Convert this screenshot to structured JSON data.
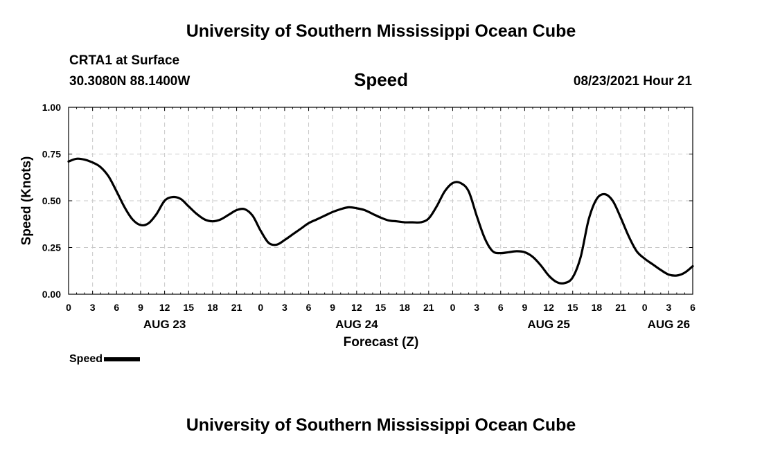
{
  "header": {
    "title": "University of Southern Mississippi Ocean Cube",
    "station": "CRTA1 at Surface",
    "coords": "30.3080N  88.1400W",
    "variable": "Speed",
    "datetime": "08/23/2021 Hour 21"
  },
  "footer": {
    "title": "University of Southern Mississippi Ocean Cube"
  },
  "legend": {
    "label": "Speed"
  },
  "chart_data": {
    "type": "line",
    "title": "Speed",
    "xlabel": "Forecast (Z)",
    "ylabel": "Speed (Knots)",
    "xlim": [
      0,
      78
    ],
    "ylim": [
      0,
      1.0
    ],
    "grid": true,
    "line_color": "#000000",
    "x_ticks": [
      0,
      3,
      6,
      9,
      12,
      15,
      18,
      21,
      24,
      27,
      30,
      33,
      36,
      39,
      42,
      45,
      48,
      51,
      54,
      57,
      60,
      63,
      66,
      69,
      72,
      75,
      78
    ],
    "x_tick_labels": [
      "0",
      "3",
      "6",
      "9",
      "12",
      "15",
      "18",
      "21",
      "0",
      "3",
      "6",
      "9",
      "12",
      "15",
      "18",
      "21",
      "0",
      "3",
      "6",
      "9",
      "12",
      "15",
      "18",
      "21",
      "0",
      "3",
      "6"
    ],
    "date_labels": [
      {
        "hour": 12,
        "label": "AUG 23"
      },
      {
        "hour": 36,
        "label": "AUG 24"
      },
      {
        "hour": 60,
        "label": "AUG 25"
      },
      {
        "hour": 75,
        "label": "AUG 26"
      }
    ],
    "y_ticks": [
      0,
      0.25,
      0.5,
      0.75,
      1.0
    ],
    "y_tick_labels": [
      "0.00",
      "0.25",
      "0.50",
      "0.75",
      "1.00"
    ],
    "series": [
      {
        "name": "Speed",
        "x": [
          0,
          1,
          2,
          3,
          4,
          5,
          6,
          7,
          8,
          9,
          10,
          11,
          12,
          13,
          14,
          15,
          16,
          17,
          18,
          19,
          20,
          21,
          22,
          23,
          24,
          25,
          26,
          27,
          28,
          29,
          30,
          31,
          32,
          33,
          34,
          35,
          36,
          37,
          38,
          39,
          40,
          41,
          42,
          43,
          44,
          45,
          46,
          47,
          48,
          49,
          50,
          51,
          52,
          53,
          54,
          55,
          56,
          57,
          58,
          59,
          60,
          61,
          62,
          63,
          64,
          65,
          66,
          67,
          68,
          69,
          70,
          71,
          72,
          73,
          74,
          75,
          76,
          77,
          78
        ],
        "values": [
          0.71,
          0.725,
          0.72,
          0.705,
          0.68,
          0.63,
          0.55,
          0.465,
          0.4,
          0.37,
          0.38,
          0.43,
          0.5,
          0.52,
          0.51,
          0.47,
          0.43,
          0.4,
          0.39,
          0.4,
          0.425,
          0.45,
          0.455,
          0.42,
          0.34,
          0.275,
          0.265,
          0.29,
          0.32,
          0.35,
          0.38,
          0.4,
          0.42,
          0.44,
          0.455,
          0.465,
          0.46,
          0.45,
          0.43,
          0.41,
          0.395,
          0.39,
          0.385,
          0.385,
          0.385,
          0.405,
          0.47,
          0.55,
          0.595,
          0.595,
          0.55,
          0.42,
          0.3,
          0.23,
          0.22,
          0.225,
          0.23,
          0.225,
          0.2,
          0.155,
          0.1,
          0.065,
          0.06,
          0.09,
          0.2,
          0.4,
          0.51,
          0.535,
          0.5,
          0.41,
          0.31,
          0.23,
          0.19,
          0.16,
          0.13,
          0.105,
          0.1,
          0.115,
          0.15
        ]
      }
    ]
  }
}
